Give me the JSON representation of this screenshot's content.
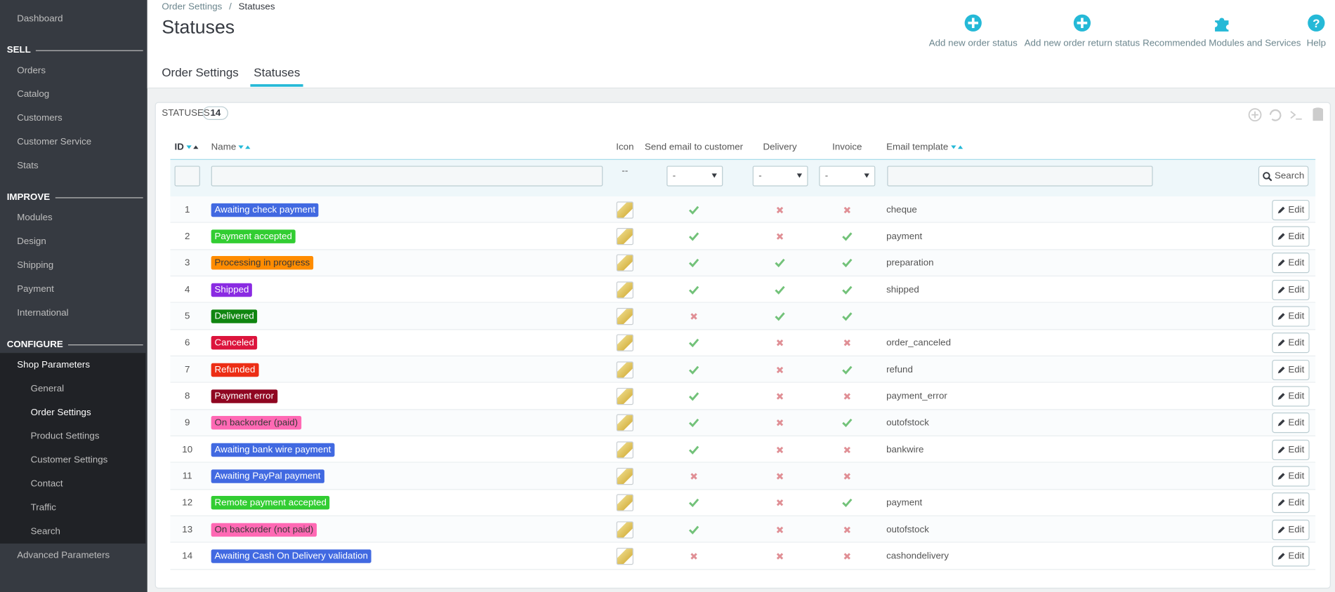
{
  "sidebar": {
    "dashboard": "Dashboard",
    "sections": [
      {
        "title": "SELL",
        "items": [
          {
            "label": "Orders"
          },
          {
            "label": "Catalog"
          },
          {
            "label": "Customers"
          },
          {
            "label": "Customer Service"
          },
          {
            "label": "Stats"
          }
        ]
      },
      {
        "title": "IMPROVE",
        "items": [
          {
            "label": "Modules"
          },
          {
            "label": "Design"
          },
          {
            "label": "Shipping"
          },
          {
            "label": "Payment"
          },
          {
            "label": "International"
          }
        ]
      },
      {
        "title": "CONFIGURE",
        "items": [
          {
            "label": "Shop Parameters",
            "children": [
              {
                "label": "General"
              },
              {
                "label": "Order Settings",
                "active": true
              },
              {
                "label": "Product Settings"
              },
              {
                "label": "Customer Settings"
              },
              {
                "label": "Contact"
              },
              {
                "label": "Traffic"
              },
              {
                "label": "Search"
              }
            ]
          },
          {
            "label": "Advanced Parameters"
          }
        ]
      }
    ]
  },
  "header": {
    "breadcrumb": [
      "Order Settings",
      "Statuses"
    ],
    "title": "Statuses",
    "toolbar": [
      "Add new order status",
      "Add new order return status",
      "Recommended Modules and Services",
      "Help"
    ],
    "tabs": [
      {
        "label": "Order Settings"
      },
      {
        "label": "Statuses",
        "active": true
      }
    ]
  },
  "panel": {
    "title": "STATUSES",
    "count": 14
  },
  "table": {
    "columns": [
      "ID",
      "Name",
      "Icon",
      "Send email to customer",
      "Delivery",
      "Invoice",
      "Email template"
    ],
    "select_placeholder": "-",
    "icon_filter": "--",
    "search_label": "Search",
    "edit_label": "Edit",
    "rows": [
      {
        "id": 1,
        "name": "Awaiting check payment",
        "color": "#4169e1",
        "send_email": true,
        "delivery": false,
        "invoice": false,
        "template": "cheque"
      },
      {
        "id": 2,
        "name": "Payment accepted",
        "color": "#32cd32",
        "send_email": true,
        "delivery": false,
        "invoice": true,
        "template": "payment"
      },
      {
        "id": 3,
        "name": "Processing in progress",
        "color": "#ff8c00",
        "send_email": true,
        "delivery": true,
        "invoice": true,
        "template": "preparation"
      },
      {
        "id": 4,
        "name": "Shipped",
        "color": "#8a2be2",
        "send_email": true,
        "delivery": true,
        "invoice": true,
        "template": "shipped"
      },
      {
        "id": 5,
        "name": "Delivered",
        "color": "#108510",
        "send_email": false,
        "delivery": true,
        "invoice": true,
        "template": null
      },
      {
        "id": 6,
        "name": "Canceled",
        "color": "#dc143c",
        "send_email": true,
        "delivery": false,
        "invoice": false,
        "template": "order_canceled"
      },
      {
        "id": 7,
        "name": "Refunded",
        "color": "#ec2e15",
        "send_email": true,
        "delivery": false,
        "invoice": true,
        "template": "refund"
      },
      {
        "id": 8,
        "name": "Payment error",
        "color": "#8f0621",
        "send_email": true,
        "delivery": false,
        "invoice": false,
        "template": "payment_error"
      },
      {
        "id": 9,
        "name": "On backorder (paid)",
        "color": "#ff69b4",
        "send_email": true,
        "delivery": false,
        "invoice": true,
        "template": "outofstock"
      },
      {
        "id": 10,
        "name": "Awaiting bank wire payment",
        "color": "#4169e1",
        "send_email": true,
        "delivery": false,
        "invoice": false,
        "template": "bankwire"
      },
      {
        "id": 11,
        "name": "Awaiting PayPal payment",
        "color": "#4169e1",
        "send_email": false,
        "delivery": false,
        "invoice": false,
        "template": null
      },
      {
        "id": 12,
        "name": "Remote payment accepted",
        "color": "#32cd32",
        "send_email": true,
        "delivery": false,
        "invoice": true,
        "template": "payment"
      },
      {
        "id": 13,
        "name": "On backorder (not paid)",
        "color": "#ff69b4",
        "send_email": true,
        "delivery": false,
        "invoice": false,
        "template": "outofstock"
      },
      {
        "id": 14,
        "name": "Awaiting Cash On Delivery validation",
        "color": "#4169e1",
        "send_email": false,
        "delivery": false,
        "invoice": false,
        "template": "cashondelivery"
      }
    ]
  }
}
